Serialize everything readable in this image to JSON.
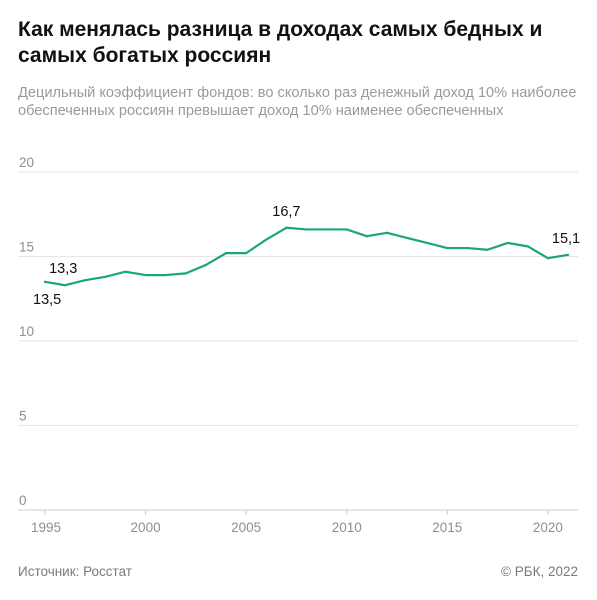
{
  "header": {
    "title": "Как менялась разница в доходах самых бедных и самых богатых россиян",
    "subtitle": "Децильный коэффициент фондов: во сколько раз денежный доход 10% наиболее обеспеченных россиян превышает доход 10% наименее обеспеченных"
  },
  "footer": {
    "source": "Источник: Росстат",
    "copyright": "© РБК, 2022"
  },
  "colors": {
    "line": "#1aa774",
    "grid": "#e6e6e6",
    "axis": "#cfcfcf"
  },
  "chart_data": {
    "type": "line",
    "title": "Как менялась разница в доходах самых бедных и самых богатых россиян",
    "subtitle": "Децильный коэффициент фондов: во сколько раз денежный доход 10% наиболее обеспеченных россиян превышает доход 10% наименее обеспеченных",
    "xlabel": "",
    "ylabel": "",
    "x": [
      1995,
      1996,
      1997,
      1998,
      1999,
      2000,
      2001,
      2002,
      2003,
      2004,
      2005,
      2006,
      2007,
      2008,
      2009,
      2010,
      2011,
      2012,
      2013,
      2014,
      2015,
      2016,
      2017,
      2018,
      2019,
      2020,
      2021
    ],
    "series": [
      {
        "values": [
          13.5,
          13.3,
          13.6,
          13.8,
          14.1,
          13.9,
          13.9,
          14.0,
          14.5,
          15.2,
          15.2,
          16.0,
          16.7,
          16.6,
          16.6,
          16.6,
          16.2,
          16.4,
          16.1,
          15.8,
          15.5,
          15.5,
          15.4,
          15.8,
          15.6,
          14.9,
          15.1
        ]
      }
    ],
    "xlim": [
      1995,
      2021
    ],
    "ylim": [
      0,
      20
    ],
    "x_ticks": [
      "1995",
      "2000",
      "2005",
      "2010",
      "2015",
      "2020"
    ],
    "y_ticks": [
      "0",
      "5",
      "10",
      "15",
      "20"
    ],
    "grid": "horizontal",
    "legend": "none",
    "annotations": [
      {
        "x": 1995,
        "text": "13,5"
      },
      {
        "x": 1996,
        "text": "13,3"
      },
      {
        "x": 2007,
        "text": "16,7"
      },
      {
        "x": 2021,
        "text": "15,1"
      }
    ]
  }
}
